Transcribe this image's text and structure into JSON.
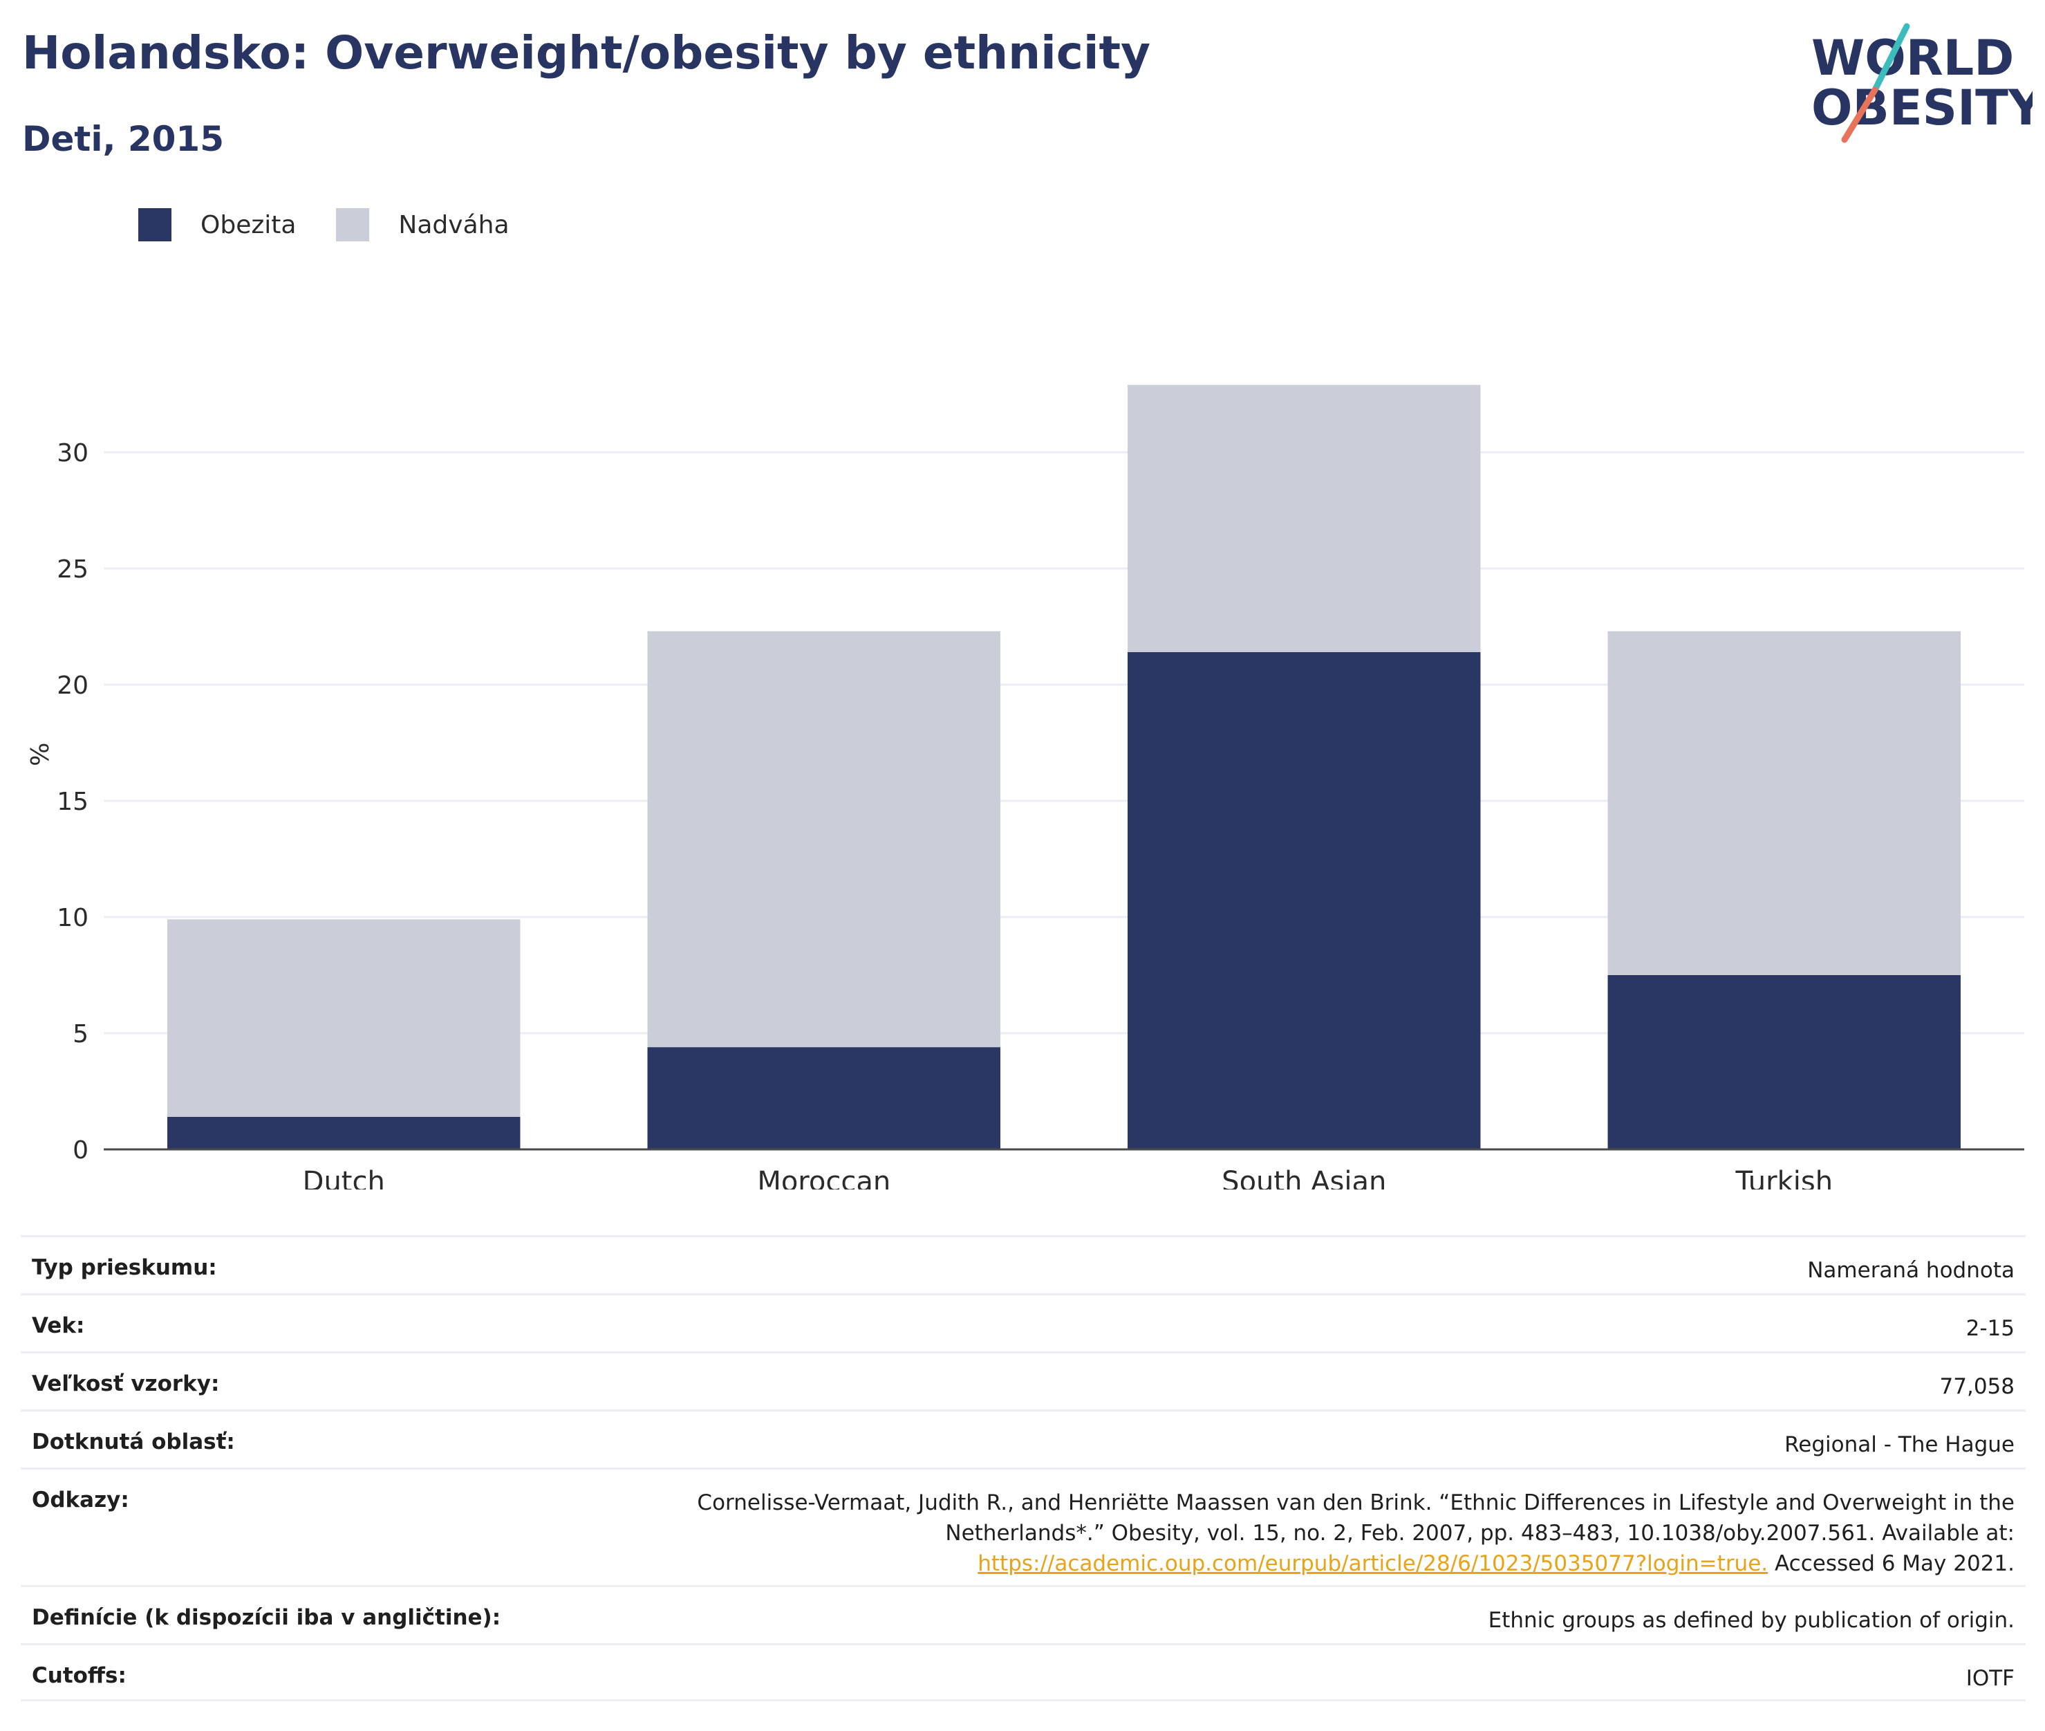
{
  "header": {
    "title": "Holandsko: Overweight/obesity by ethnicity",
    "subtitle": "Deti, 2015"
  },
  "logo": {
    "line1": "WORLD",
    "line2": "OBESITY",
    "colors": {
      "text": "#283562",
      "slash_top": "#3cbcbc",
      "slash_bottom": "#e8735a"
    }
  },
  "legend": [
    {
      "label": "Obezita",
      "color": "#2a3663"
    },
    {
      "label": "Nadváha",
      "color": "#cbcdd8"
    }
  ],
  "chart_data": {
    "type": "bar",
    "stacked": true,
    "categories": [
      "Dutch",
      "Moroccan",
      "South Asian",
      "Turkish"
    ],
    "series": [
      {
        "name": "Obezita",
        "color": "#2a3663",
        "values": [
          1.4,
          4.4,
          21.4,
          7.5
        ]
      },
      {
        "name": "Nadváha",
        "color": "#cbcdd8",
        "values": [
          8.5,
          17.9,
          11.5,
          14.8
        ]
      }
    ],
    "ylabel": "%",
    "yticks": [
      0,
      5,
      10,
      15,
      20,
      25,
      30
    ],
    "ylim": [
      0,
      35
    ],
    "grid": true,
    "legend_position": "top-left"
  },
  "meta": {
    "survey_type": {
      "label": "Typ prieskumu:",
      "value": "Nameraná hodnota"
    },
    "age": {
      "label": "Vek:",
      "value": "2-15"
    },
    "sample_size": {
      "label": "Veľkosť vzorky:",
      "value": "77,058"
    },
    "area": {
      "label": "Dotknutá oblasť:",
      "value": "Regional - The Hague"
    },
    "references": {
      "label": "Odkazy:",
      "line1": "Cornelisse-Vermaat, Judith R., and Henriëtte Maassen van den Brink. “Ethnic Differences in Lifestyle and Overweight in the",
      "line2": "Netherlands*.” Obesity, vol. 15, no. 2, Feb. 2007, pp. 483–483, 10.1038/oby.2007.561. Available at:",
      "link": "https://academic.oup.com/eurpub/article/28/6/1023/5035077?login=true.",
      "accessed": " Accessed 6 May 2021."
    },
    "definitions": {
      "label": "Definície (k dispozícii iba v angličtine):",
      "value": "Ethnic groups as defined by publication of origin."
    },
    "cutoffs": {
      "label": "Cutoffs:",
      "value": "IOTF"
    }
  }
}
